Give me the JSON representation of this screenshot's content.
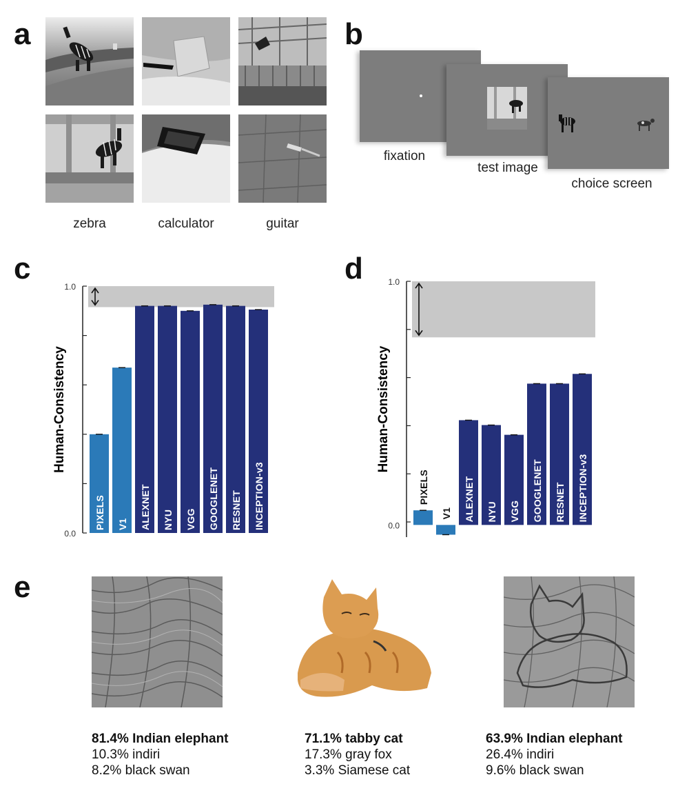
{
  "panel_labels": {
    "a": "a",
    "b": "b",
    "c": "c",
    "d": "d",
    "e": "e"
  },
  "panel_a": {
    "captions": [
      "zebra",
      "calculator",
      "guitar"
    ]
  },
  "panel_b": {
    "screens": [
      "fixation",
      "test image",
      "choice screen"
    ]
  },
  "chart_data": [
    {
      "panel": "c",
      "type": "bar",
      "ylabel": "Human-Consistency",
      "yticks": [
        "1.0",
        "0.0"
      ],
      "ylim": [
        0,
        1
      ],
      "human_ceiling_band": [
        0.915,
        1.0
      ],
      "categories": [
        "PIXELS",
        "V1",
        "ALEXNET",
        "NYU",
        "VGG",
        "GOOGLENET",
        "RESNET",
        "INCEPTION-v3"
      ],
      "values": [
        0.4,
        0.67,
        0.92,
        0.92,
        0.9,
        0.925,
        0.92,
        0.905
      ],
      "colors": [
        "#2b7ab8",
        "#2b7ab8",
        "#24307a",
        "#24307a",
        "#24307a",
        "#24307a",
        "#24307a",
        "#24307a"
      ],
      "grid": false
    },
    {
      "panel": "d",
      "type": "bar",
      "ylabel": "Human-Consistency",
      "yticks": [
        "1.0",
        "0.0"
      ],
      "ylim": [
        -0.05,
        1
      ],
      "human_ceiling_band": [
        0.77,
        1.0
      ],
      "categories": [
        "PIXELS",
        "V1",
        "ALEXNET",
        "NYU",
        "VGG",
        "GOOGLENET",
        "RESNET",
        "INCEPTION-v3"
      ],
      "values": [
        0.06,
        -0.04,
        0.43,
        0.41,
        0.37,
        0.58,
        0.58,
        0.62
      ],
      "colors": [
        "#2b7ab8",
        "#2b7ab8",
        "#24307a",
        "#24307a",
        "#24307a",
        "#24307a",
        "#24307a",
        "#24307a"
      ],
      "grid": false
    }
  ],
  "panel_e": {
    "predictions": [
      {
        "top": "81.4% Indian elephant",
        "second": "10.3% indiri",
        "third": "8.2% black swan"
      },
      {
        "top": "71.1% tabby cat",
        "second": "17.3% gray fox",
        "third": "3.3% Siamese cat"
      },
      {
        "top": "63.9% Indian elephant",
        "second": "26.4% indiri",
        "third": "9.6% black swan"
      }
    ]
  },
  "colors": {
    "pixel_v1": "#2b7ab8",
    "cnn": "#24307a",
    "ceiling": "#c8c8c8",
    "screen": "#7d7d7d"
  }
}
